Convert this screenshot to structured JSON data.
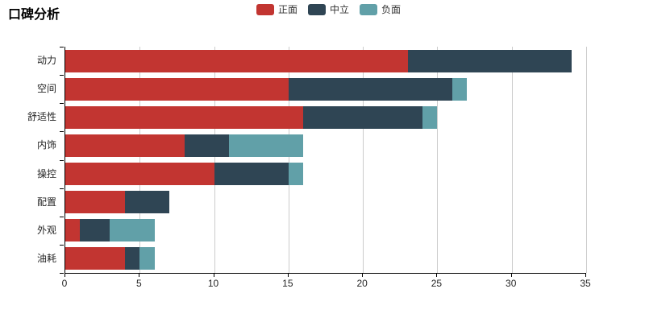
{
  "chart_data": {
    "type": "bar",
    "orientation": "horizontal",
    "stacked": true,
    "title": "口碑分析",
    "categories": [
      "动力",
      "空间",
      "舒适性",
      "内饰",
      "操控",
      "配置",
      "外观",
      "油耗"
    ],
    "series": [
      {
        "name": "正面",
        "color": "#c23531",
        "values": [
          23,
          15,
          16,
          8,
          10,
          4,
          1,
          4
        ]
      },
      {
        "name": "中立",
        "color": "#2f4554",
        "values": [
          11,
          11,
          8,
          3,
          5,
          3,
          2,
          1
        ]
      },
      {
        "name": "负面",
        "color": "#61a0a8",
        "values": [
          0,
          1,
          1,
          5,
          1,
          0,
          3,
          1
        ]
      }
    ],
    "totals": [
      34,
      27,
      25,
      16,
      16,
      7,
      6,
      6
    ],
    "xlim": [
      0,
      35
    ],
    "xticks": [
      0,
      5,
      10,
      15,
      20,
      25,
      30,
      35
    ],
    "grid": true,
    "legend_position": "top",
    "colors": {
      "gridline": "#cccccc",
      "axis": "#000000",
      "tick_label": "#262626",
      "legend_text": "#333333",
      "background": "#ffffff"
    }
  }
}
